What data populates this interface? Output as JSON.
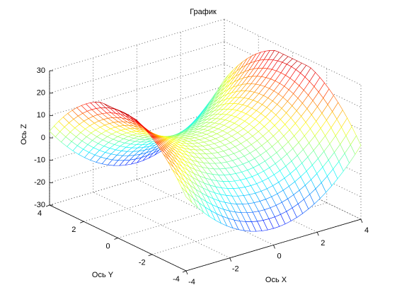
{
  "chart_data": {
    "type": "mesh",
    "title": "График",
    "xlabel": "Ось X",
    "ylabel": "Ось Y",
    "zlabel": "Ось Z",
    "xlim": [
      -4,
      4
    ],
    "ylim": [
      -4,
      4
    ],
    "zlim": [
      -30,
      30
    ],
    "xticks": [
      -4,
      -2,
      0,
      2,
      4
    ],
    "yticks": [
      -4,
      -2,
      0,
      2,
      4
    ],
    "zticks": [
      -30,
      -20,
      -10,
      0,
      10,
      20,
      30
    ],
    "grid": true
  }
}
